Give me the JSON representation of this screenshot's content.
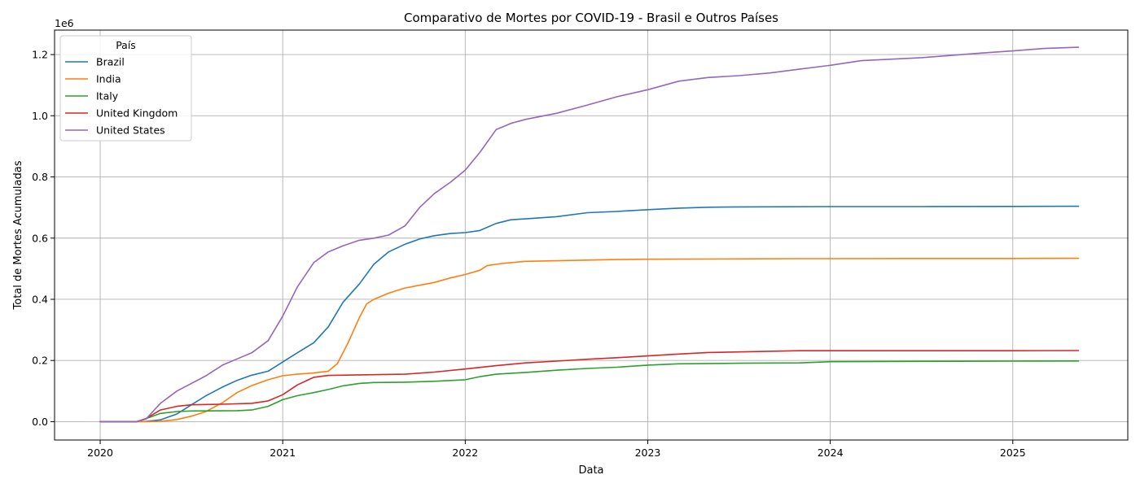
{
  "chart_data": {
    "type": "line",
    "title": "Comparativo de Mortes por COVID-19 - Brasil e Outros Países",
    "xlabel": "Data",
    "ylabel": "Total de Mortes Acumuladas",
    "y_offset_label": "1e6",
    "xlim": [
      2019.75,
      2025.63
    ],
    "ylim": [
      -60000,
      1280000
    ],
    "x_ticks": [
      2020,
      2021,
      2022,
      2023,
      2024,
      2025
    ],
    "x_tick_labels": [
      "2020",
      "2021",
      "2022",
      "2023",
      "2024",
      "2025"
    ],
    "y_ticks": [
      0,
      200000,
      400000,
      600000,
      800000,
      1000000,
      1200000
    ],
    "y_tick_labels": [
      "0.0",
      "0.2",
      "0.4",
      "0.6",
      "0.8",
      "1.0",
      "1.2"
    ],
    "grid": true,
    "legend": {
      "title": "País",
      "position": "top-left"
    },
    "series": [
      {
        "name": "Brazil",
        "color": "#1f77b4",
        "points": [
          [
            2020.0,
            0
          ],
          [
            2020.17,
            0
          ],
          [
            2020.25,
            500
          ],
          [
            2020.33,
            6000
          ],
          [
            2020.42,
            25000
          ],
          [
            2020.5,
            55000
          ],
          [
            2020.58,
            85000
          ],
          [
            2020.67,
            113000
          ],
          [
            2020.75,
            135000
          ],
          [
            2020.83,
            152000
          ],
          [
            2020.92,
            165000
          ],
          [
            2021.0,
            195000
          ],
          [
            2021.08,
            225000
          ],
          [
            2021.17,
            258000
          ],
          [
            2021.25,
            310000
          ],
          [
            2021.33,
            390000
          ],
          [
            2021.42,
            450000
          ],
          [
            2021.5,
            515000
          ],
          [
            2021.58,
            555000
          ],
          [
            2021.67,
            580000
          ],
          [
            2021.75,
            597000
          ],
          [
            2021.83,
            608000
          ],
          [
            2021.92,
            615000
          ],
          [
            2022.0,
            618000
          ],
          [
            2022.08,
            625000
          ],
          [
            2022.17,
            648000
          ],
          [
            2022.25,
            660000
          ],
          [
            2022.33,
            663000
          ],
          [
            2022.5,
            670000
          ],
          [
            2022.67,
            683000
          ],
          [
            2022.83,
            687000
          ],
          [
            2023.0,
            693000
          ],
          [
            2023.17,
            698000
          ],
          [
            2023.33,
            701000
          ],
          [
            2023.5,
            702000
          ],
          [
            2024.0,
            703000
          ],
          [
            2024.5,
            703000
          ],
          [
            2025.0,
            703500
          ],
          [
            2025.36,
            704000
          ]
        ]
      },
      {
        "name": "India",
        "color": "#ff7f0e",
        "points": [
          [
            2020.0,
            0
          ],
          [
            2020.25,
            0
          ],
          [
            2020.33,
            1000
          ],
          [
            2020.42,
            7000
          ],
          [
            2020.5,
            18000
          ],
          [
            2020.58,
            33000
          ],
          [
            2020.67,
            62000
          ],
          [
            2020.75,
            95000
          ],
          [
            2020.83,
            118000
          ],
          [
            2020.92,
            137000
          ],
          [
            2021.0,
            150000
          ],
          [
            2021.08,
            155000
          ],
          [
            2021.17,
            159000
          ],
          [
            2021.25,
            165000
          ],
          [
            2021.3,
            190000
          ],
          [
            2021.36,
            260000
          ],
          [
            2021.42,
            340000
          ],
          [
            2021.46,
            385000
          ],
          [
            2021.5,
            400000
          ],
          [
            2021.58,
            420000
          ],
          [
            2021.67,
            437000
          ],
          [
            2021.75,
            446000
          ],
          [
            2021.83,
            455000
          ],
          [
            2021.92,
            470000
          ],
          [
            2022.0,
            481000
          ],
          [
            2022.08,
            495000
          ],
          [
            2022.12,
            510000
          ],
          [
            2022.2,
            517000
          ],
          [
            2022.25,
            520000
          ],
          [
            2022.33,
            524000
          ],
          [
            2022.5,
            526000
          ],
          [
            2022.83,
            530000
          ],
          [
            2023.0,
            531000
          ],
          [
            2023.5,
            532000
          ],
          [
            2023.83,
            533000
          ],
          [
            2024.0,
            533000
          ],
          [
            2024.5,
            533500
          ],
          [
            2025.0,
            533500
          ],
          [
            2025.36,
            534000
          ]
        ]
      },
      {
        "name": "Italy",
        "color": "#2ca02c",
        "points": [
          [
            2020.0,
            0
          ],
          [
            2020.2,
            0
          ],
          [
            2020.25,
            10000
          ],
          [
            2020.33,
            27000
          ],
          [
            2020.42,
            33000
          ],
          [
            2020.5,
            35000
          ],
          [
            2020.67,
            35500
          ],
          [
            2020.75,
            36000
          ],
          [
            2020.83,
            38000
          ],
          [
            2020.92,
            50000
          ],
          [
            2021.0,
            72000
          ],
          [
            2021.08,
            85000
          ],
          [
            2021.17,
            95000
          ],
          [
            2021.25,
            105000
          ],
          [
            2021.33,
            117000
          ],
          [
            2021.42,
            125000
          ],
          [
            2021.5,
            128000
          ],
          [
            2021.67,
            129000
          ],
          [
            2021.83,
            132000
          ],
          [
            2022.0,
            137000
          ],
          [
            2022.08,
            147000
          ],
          [
            2022.17,
            155000
          ],
          [
            2022.33,
            161000
          ],
          [
            2022.5,
            168000
          ],
          [
            2022.67,
            174000
          ],
          [
            2022.83,
            178000
          ],
          [
            2023.0,
            185000
          ],
          [
            2023.17,
            189000
          ],
          [
            2023.5,
            191000
          ],
          [
            2023.83,
            192000
          ],
          [
            2024.0,
            196000
          ],
          [
            2024.5,
            197000
          ],
          [
            2025.0,
            198000
          ],
          [
            2025.36,
            198500
          ]
        ]
      },
      {
        "name": "United Kingdom",
        "color": "#d62728",
        "points": [
          [
            2020.0,
            0
          ],
          [
            2020.2,
            0
          ],
          [
            2020.25,
            10000
          ],
          [
            2020.33,
            38000
          ],
          [
            2020.42,
            50000
          ],
          [
            2020.5,
            55000
          ],
          [
            2020.67,
            57000
          ],
          [
            2020.83,
            60000
          ],
          [
            2020.92,
            68000
          ],
          [
            2021.0,
            88000
          ],
          [
            2021.08,
            120000
          ],
          [
            2021.17,
            145000
          ],
          [
            2021.25,
            151000
          ],
          [
            2021.42,
            153000
          ],
          [
            2021.67,
            155000
          ],
          [
            2021.83,
            162000
          ],
          [
            2022.0,
            172000
          ],
          [
            2022.17,
            183000
          ],
          [
            2022.33,
            192000
          ],
          [
            2022.5,
            198000
          ],
          [
            2022.67,
            204000
          ],
          [
            2022.83,
            209000
          ],
          [
            2023.0,
            215000
          ],
          [
            2023.17,
            221000
          ],
          [
            2023.33,
            226000
          ],
          [
            2023.5,
            228000
          ],
          [
            2023.83,
            232000
          ],
          [
            2024.0,
            232000
          ],
          [
            2024.5,
            232000
          ],
          [
            2025.0,
            232000
          ],
          [
            2025.36,
            232500
          ]
        ]
      },
      {
        "name": "United States",
        "color": "#9467bd",
        "points": [
          [
            2020.0,
            0
          ],
          [
            2020.2,
            0
          ],
          [
            2020.25,
            8000
          ],
          [
            2020.33,
            60000
          ],
          [
            2020.42,
            100000
          ],
          [
            2020.5,
            125000
          ],
          [
            2020.58,
            150000
          ],
          [
            2020.67,
            185000
          ],
          [
            2020.75,
            205000
          ],
          [
            2020.83,
            225000
          ],
          [
            2020.92,
            265000
          ],
          [
            2021.0,
            345000
          ],
          [
            2021.08,
            440000
          ],
          [
            2021.17,
            520000
          ],
          [
            2021.25,
            555000
          ],
          [
            2021.33,
            575000
          ],
          [
            2021.42,
            593000
          ],
          [
            2021.5,
            600000
          ],
          [
            2021.58,
            610000
          ],
          [
            2021.67,
            640000
          ],
          [
            2021.75,
            700000
          ],
          [
            2021.83,
            745000
          ],
          [
            2021.92,
            783000
          ],
          [
            2022.0,
            822000
          ],
          [
            2022.08,
            880000
          ],
          [
            2022.17,
            955000
          ],
          [
            2022.25,
            975000
          ],
          [
            2022.33,
            988000
          ],
          [
            2022.5,
            1008000
          ],
          [
            2022.67,
            1035000
          ],
          [
            2022.83,
            1062000
          ],
          [
            2023.0,
            1085000
          ],
          [
            2023.17,
            1113000
          ],
          [
            2023.33,
            1125000
          ],
          [
            2023.5,
            1131000
          ],
          [
            2023.67,
            1140000
          ],
          [
            2023.83,
            1152000
          ],
          [
            2024.0,
            1165000
          ],
          [
            2024.17,
            1180000
          ],
          [
            2024.5,
            1190000
          ],
          [
            2024.83,
            1205000
          ],
          [
            2025.0,
            1212000
          ],
          [
            2025.17,
            1220000
          ],
          [
            2025.36,
            1224000
          ]
        ]
      }
    ]
  }
}
